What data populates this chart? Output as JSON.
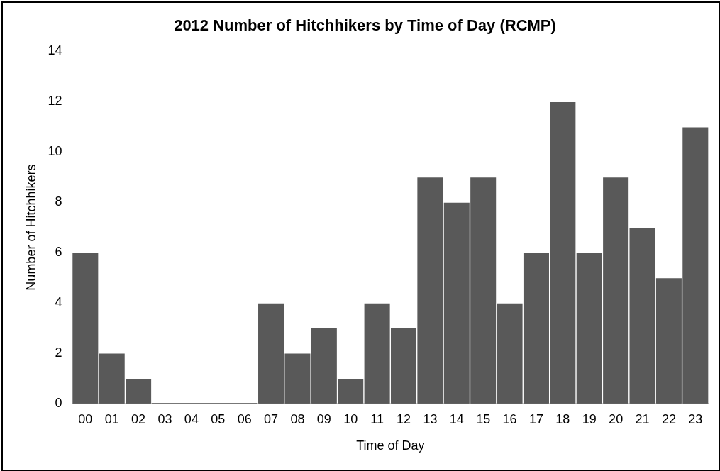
{
  "chart_data": {
    "type": "bar",
    "title": "2012 Number of Hitchhikers by Time of Day (RCMP)",
    "xlabel": "Time of Day",
    "ylabel": "Number of Hitchhikers",
    "categories": [
      "00",
      "01",
      "02",
      "03",
      "04",
      "05",
      "06",
      "07",
      "08",
      "09",
      "10",
      "11",
      "12",
      "13",
      "14",
      "15",
      "16",
      "17",
      "18",
      "19",
      "20",
      "21",
      "22",
      "23"
    ],
    "values": [
      6,
      2,
      1,
      0,
      0,
      0,
      0,
      4,
      2,
      3,
      1,
      4,
      3,
      9,
      8,
      9,
      4,
      6,
      12,
      6,
      9,
      7,
      5,
      11
    ],
    "color": "#595959",
    "ylim": [
      0,
      14
    ],
    "yticks": [
      0,
      2,
      4,
      6,
      8,
      10,
      12,
      14
    ],
    "grid": false,
    "legend": false
  }
}
